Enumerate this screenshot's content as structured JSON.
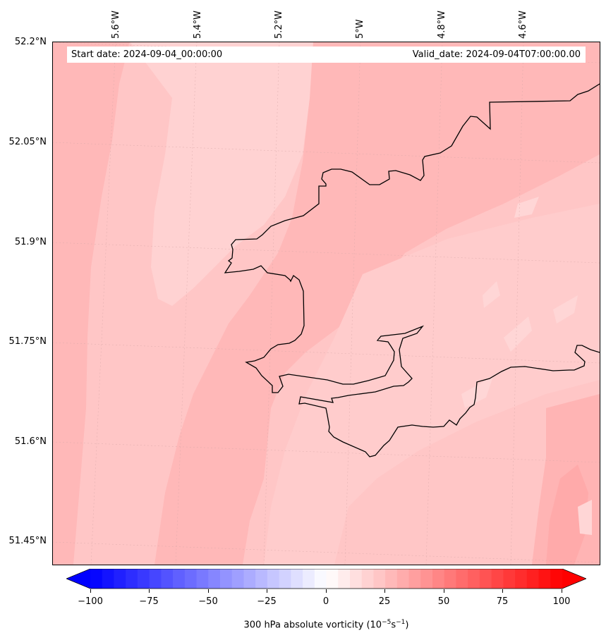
{
  "header": {
    "start_date": "Start date: 2024-09-04_00:00:00",
    "valid_date": "Valid_date: 2024-09-04T07:00:00.00"
  },
  "axes": {
    "latitudes": [
      "52.2°N",
      "52.05°N",
      "51.9°N",
      "51.75°N",
      "51.6°N",
      "51.45°N"
    ],
    "longitudes": [
      "5.6°W",
      "5.4°W",
      "5.2°W",
      "5°W",
      "4.8°W",
      "4.6°W"
    ]
  },
  "colorbar": {
    "ticks": [
      "−100",
      "−75",
      "−50",
      "−25",
      "0",
      "25",
      "50",
      "75",
      "100"
    ],
    "title_main": "300 hPa absolute vorticity (10",
    "title_exp1": "−5",
    "title_mid": "s",
    "title_exp2": "−1",
    "title_end": ")",
    "min": -100,
    "max": 100,
    "levels": 40,
    "color_min": "#0000ff",
    "color_mid": "#ffffff",
    "color_max": "#ff0000"
  },
  "field": {
    "base_color": "#ffc6c6",
    "band_color": "#ffb8b8",
    "light_color": "#ffd2d2",
    "dark_color": "#ffaaaa"
  }
}
